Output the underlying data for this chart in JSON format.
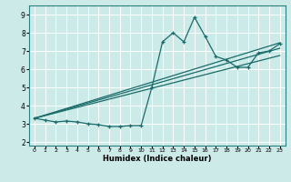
{
  "title": "",
  "xlabel": "Humidex (Indice chaleur)",
  "ylabel": "",
  "bg_color": "#cceae7",
  "grid_color": "#ffffff",
  "line_color": "#1a6b6b",
  "xlim": [
    -0.5,
    23.5
  ],
  "ylim": [
    1.8,
    9.5
  ],
  "xticks": [
    0,
    1,
    2,
    3,
    4,
    5,
    6,
    7,
    8,
    9,
    10,
    11,
    12,
    13,
    14,
    15,
    16,
    17,
    18,
    19,
    20,
    21,
    22,
    23
  ],
  "yticks": [
    2,
    3,
    4,
    5,
    6,
    7,
    8,
    9
  ],
  "series": [
    {
      "x": [
        0,
        1,
        2,
        3,
        4,
        5,
        6,
        7,
        8,
        9,
        10,
        11,
        12,
        13,
        14,
        15,
        16,
        17,
        18,
        19,
        20,
        21,
        22,
        23
      ],
      "y": [
        3.3,
        3.2,
        3.1,
        3.15,
        3.1,
        3.0,
        2.95,
        2.85,
        2.85,
        2.9,
        2.9,
        5.0,
        7.5,
        8.0,
        7.5,
        8.85,
        7.8,
        6.7,
        6.5,
        6.1,
        6.1,
        6.9,
        7.0,
        7.4
      ]
    },
    {
      "x": [
        0,
        23
      ],
      "y": [
        3.3,
        7.45
      ]
    },
    {
      "x": [
        0,
        23
      ],
      "y": [
        3.3,
        7.15
      ]
    },
    {
      "x": [
        0,
        23
      ],
      "y": [
        3.3,
        6.75
      ]
    }
  ]
}
